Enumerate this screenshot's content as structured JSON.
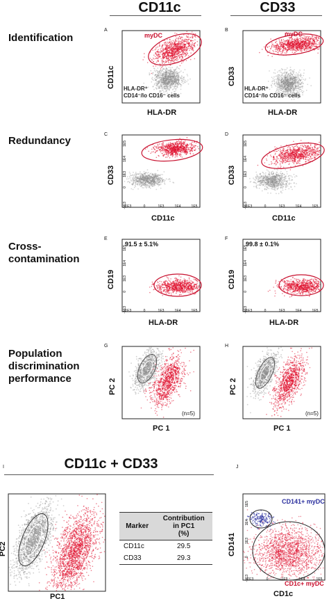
{
  "columns": {
    "left": "CD11c",
    "right": "CD33"
  },
  "rows": {
    "identification": "Identification",
    "redundancy": "Redundancy",
    "cross_contamination": "Cross-\ncontamination",
    "population": "Population\ndiscrimination\nperformance"
  },
  "panels": {
    "A": {
      "letter": "A",
      "ylabel": "CD11c",
      "xlabel": "HLA-DR",
      "gate": "myDC",
      "annot_line1": "HLA-DR⁺",
      "annot_line2": "CD14⁻/lo CD16⁻ cells"
    },
    "B": {
      "letter": "B",
      "ylabel": "CD33",
      "xlabel": "HLA-DR",
      "gate": "myDC",
      "annot_line1": "HLA-DR⁺",
      "annot_line2": "CD14⁻/lo CD16⁻ cells"
    },
    "C": {
      "letter": "C",
      "ylabel": "CD33",
      "xlabel": "CD11c"
    },
    "D": {
      "letter": "D",
      "ylabel": "CD33",
      "xlabel": "CD11c"
    },
    "E": {
      "letter": "E",
      "ylabel": "CD19",
      "xlabel": "HLA-DR",
      "pct": "91.5 ± 5.1%"
    },
    "F": {
      "letter": "F",
      "ylabel": "CD19",
      "xlabel": "HLA-DR",
      "pct": "99.8 ± 0.1%"
    },
    "G": {
      "letter": "G",
      "ylabel": "PC 2",
      "xlabel": "PC 1",
      "n": "(n=5)"
    },
    "H": {
      "letter": "H",
      "ylabel": "PC 2",
      "xlabel": "PC 1",
      "n": "(n=5)"
    },
    "I": {
      "letter": "I",
      "title": "CD11c + CD33",
      "ylabel": "PC2",
      "xlabel": "PC1"
    },
    "J": {
      "letter": "J",
      "ylabel": "CD141",
      "xlabel": "CD1c",
      "gate1": "CD141+ myDC",
      "gate2": "CD1c+ myDC"
    }
  },
  "ticks": {
    "y": [
      "1E5",
      "1E4",
      "1E3",
      "0",
      "-1E3"
    ],
    "x": [
      "-1E3",
      "0",
      "1E3",
      "1E4",
      "1E5"
    ]
  },
  "table": {
    "headers": [
      "Marker",
      "Contribution\nin PC1\n(%)"
    ],
    "rows": [
      {
        "marker": "CD11c",
        "value": "29.5"
      },
      {
        "marker": "CD33",
        "value": "29.3"
      }
    ]
  },
  "colors": {
    "red": "#e0102e",
    "gray": "#8a8a8a",
    "blue": "#2a2f9e",
    "gate": "#c8102e"
  }
}
